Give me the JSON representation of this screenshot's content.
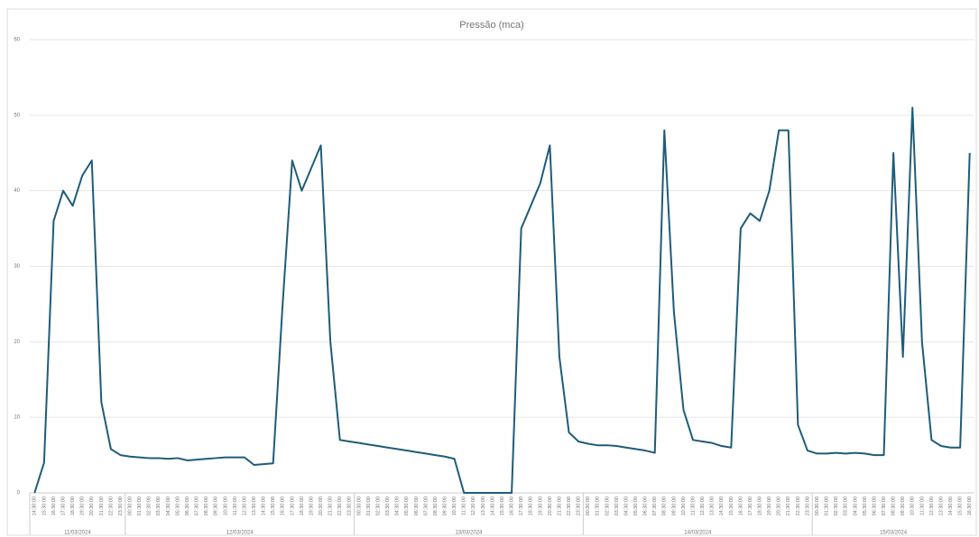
{
  "chart_data": {
    "type": "line",
    "title": "Pressão (mca)",
    "categories": [
      "14:30:00",
      "15:30:00",
      "16:30:00",
      "17:30:00",
      "18:30:00",
      "19:30:00",
      "20:30:00",
      "21:30:00",
      "22:30:00",
      "23:30:00",
      "00:30:00",
      "01:30:00",
      "02:30:00",
      "03:30:00",
      "04:30:00",
      "05:30:00",
      "06:30:00",
      "07:30:00",
      "08:30:00",
      "09:30:00",
      "10:30:00",
      "11:30:00",
      "12:30:00",
      "13:30:00",
      "14:30:00",
      "15:30:00",
      "16:30:00",
      "17:30:00",
      "18:30:00",
      "19:30:00",
      "20:30:00",
      "21:30:00",
      "22:30:00",
      "23:30:00",
      "00:30:00",
      "01:30:00",
      "02:30:00",
      "03:30:00",
      "04:30:00",
      "05:30:00",
      "06:30:00",
      "07:30:00",
      "08:30:00",
      "09:30:00",
      "10:30:00",
      "11:30:00",
      "12:30:00",
      "13:30:00",
      "14:30:00",
      "15:30:00",
      "16:30:00",
      "17:30:00",
      "18:30:00",
      "19:30:00",
      "20:30:00",
      "21:30:00",
      "22:30:00",
      "23:30:00",
      "00:30:00",
      "01:30:00",
      "02:30:00",
      "03:30:00",
      "04:30:00",
      "05:30:00",
      "06:30:00",
      "07:30:00",
      "08:30:00",
      "09:30:00",
      "10:30:00",
      "11:30:00",
      "12:30:00",
      "13:30:00",
      "14:30:00",
      "15:30:00",
      "16:30:00",
      "17:30:00",
      "18:30:00",
      "19:30:00",
      "20:30:00",
      "21:30:00",
      "22:30:00",
      "23:30:00",
      "00:30:00",
      "01:30:00",
      "02:30:00",
      "03:30:00",
      "04:30:00",
      "05:30:00",
      "06:30:00",
      "07:30:00",
      "08:30:00",
      "09:30:00",
      "10:30:00",
      "11:30:00",
      "12:30:00",
      "13:30:00",
      "14:30:00",
      "15:30:00",
      "16:30:00"
    ],
    "dates": [
      "11/03/2024",
      "12/03/2024",
      "13/03/2024",
      "14/03/2024",
      "15/03/2024"
    ],
    "values": [
      0,
      4,
      36,
      40,
      38,
      42,
      44,
      12,
      5.8,
      5,
      4.8,
      4.7,
      4.6,
      4.6,
      4.5,
      4.6,
      4.3,
      4.4,
      4.5,
      4.6,
      4.7,
      4.7,
      4.7,
      3.7,
      3.8,
      3.9,
      25,
      44,
      40,
      43,
      46,
      20,
      7,
      6.8,
      6.6,
      6.4,
      6.2,
      6.0,
      5.8,
      5.6,
      5.4,
      5.2,
      5.0,
      4.8,
      4.5,
      0,
      0,
      0,
      0,
      0,
      0,
      35,
      38,
      41,
      46,
      18,
      8,
      6.8,
      6.5,
      6.3,
      6.3,
      6.2,
      6.0,
      5.8,
      5.6,
      5.3,
      48,
      24,
      11,
      7,
      6.8,
      6.6,
      6.2,
      6.0,
      35,
      37,
      36,
      40,
      48,
      48,
      9,
      5.6,
      5.2,
      5.2,
      5.3,
      5.2,
      5.3,
      5.2,
      5.0,
      5.0,
      45,
      18,
      51,
      20,
      7,
      6.2,
      6.0,
      6.0,
      45
    ],
    "color": "#1f5c7a",
    "ylim": [
      0,
      60
    ],
    "yticks": [
      0,
      10,
      20,
      30,
      40,
      50,
      60
    ],
    "grid": true
  }
}
